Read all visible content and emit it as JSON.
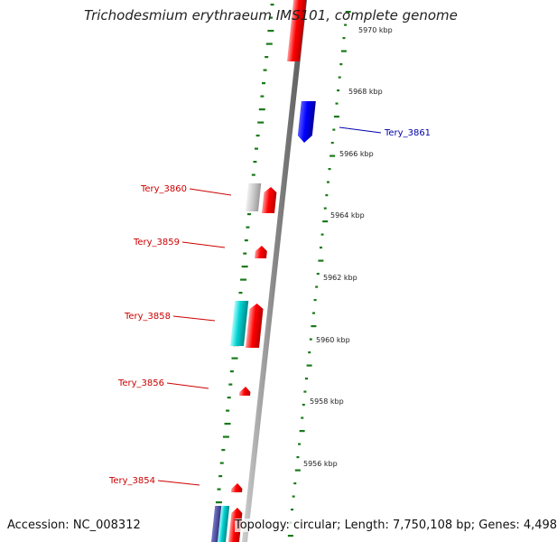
{
  "title": "Trichodesmium erythraeum IMS101, complete genome",
  "accession": "Accession: NC_008312",
  "info": "Topology: circular; Length: 7,750,108 bp; Genes: 4,498",
  "colors": {
    "forward_gene": "#ff0000",
    "reverse_gene": "#0000ff",
    "rna_gene": "#00cccc",
    "other_feature": "#bbbbbb",
    "backbone": "#888888",
    "gc_dots": "#1a7a1a",
    "label_forward": "#cc0000",
    "label_reverse": "#0000aa"
  },
  "ticks": [
    {
      "label": "5970 kbp"
    },
    {
      "label": "5968 kbp"
    },
    {
      "label": "5966 kbp"
    },
    {
      "label": "5964 kbp"
    },
    {
      "label": "5962 kbp"
    },
    {
      "label": "5960 kbp"
    },
    {
      "label": "5958 kbp"
    },
    {
      "label": "5956 kbp"
    }
  ],
  "gene_labels": [
    {
      "name": "Tery_3861",
      "strand": "reverse"
    },
    {
      "name": "Tery_3860",
      "strand": "forward"
    },
    {
      "name": "Tery_3859",
      "strand": "forward"
    },
    {
      "name": "Tery_3858",
      "strand": "forward"
    },
    {
      "name": "Tery_3856",
      "strand": "forward"
    },
    {
      "name": "Tery_3854",
      "strand": "forward"
    }
  ]
}
